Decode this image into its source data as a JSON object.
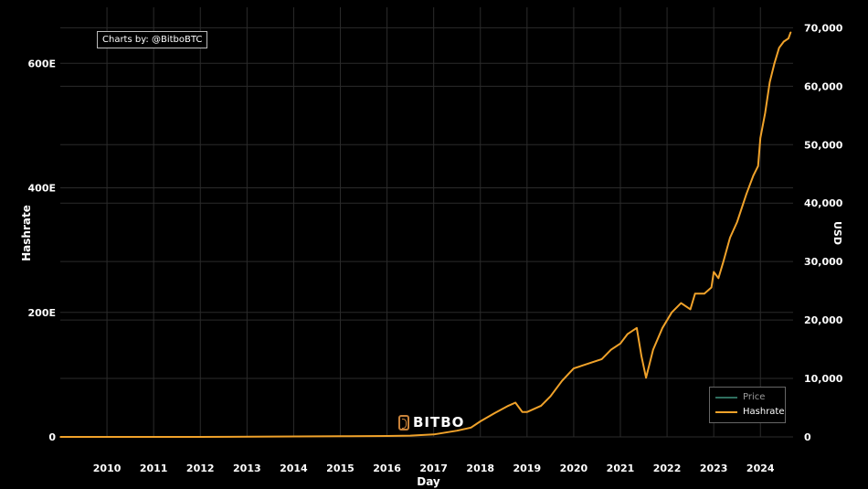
{
  "credit": "Charts by: @BitboBTC",
  "brand": "BITBO",
  "colors": {
    "hashrate": "#f0a22a",
    "price": "#2f6f5f",
    "grid": "#2b2b2b",
    "text": "#ffffff"
  },
  "chart_data": {
    "type": "line",
    "title": "",
    "xlabel": "Day",
    "ylabel_left": "Hashrate",
    "ylabel_right": "USD",
    "x_ticks": [
      "2010",
      "2011",
      "2012",
      "2013",
      "2014",
      "2015",
      "2016",
      "2017",
      "2018",
      "2019",
      "2020",
      "2021",
      "2022",
      "2023",
      "2024"
    ],
    "xlim": [
      2009.0,
      2024.7
    ],
    "y_left_ticks": [
      "0",
      "200E",
      "400E",
      "600E"
    ],
    "y_left_tick_values": [
      0,
      200,
      400,
      600
    ],
    "ylim_left": [
      0,
      690
    ],
    "y_right_ticks": [
      "0",
      "10,000",
      "20,000",
      "30,000",
      "40,000",
      "50,000",
      "60,000",
      "70,000"
    ],
    "y_right_tick_values": [
      0,
      10000,
      20000,
      30000,
      40000,
      50000,
      60000,
      70000
    ],
    "ylim_right": [
      0,
      73500
    ],
    "grid": true,
    "legend_position": "bottom-right",
    "series": [
      {
        "name": "Price",
        "axis": "right",
        "x": [],
        "values": []
      },
      {
        "name": "Hashrate",
        "axis": "left",
        "x": [
          2009.0,
          2012.0,
          2015.0,
          2016.0,
          2016.5,
          2017.0,
          2017.5,
          2017.8,
          2018.0,
          2018.3,
          2018.6,
          2018.75,
          2018.9,
          2019.0,
          2019.3,
          2019.5,
          2019.75,
          2020.0,
          2020.2,
          2020.4,
          2020.6,
          2020.8,
          2021.0,
          2021.15,
          2021.35,
          2021.45,
          2021.55,
          2021.7,
          2021.9,
          2022.1,
          2022.3,
          2022.5,
          2022.6,
          2022.8,
          2022.95,
          2023.0,
          2023.1,
          2023.2,
          2023.35,
          2023.5,
          2023.7,
          2023.85,
          2023.95,
          2024.0,
          2024.1,
          2024.2,
          2024.3,
          2024.4,
          2024.5,
          2024.6,
          2024.65
        ],
        "values": [
          0,
          0,
          1,
          1.5,
          2,
          4,
          10,
          15,
          25,
          38,
          50,
          55,
          40,
          40,
          50,
          65,
          90,
          110,
          115,
          120,
          125,
          140,
          150,
          165,
          175,
          130,
          95,
          140,
          175,
          200,
          215,
          205,
          230,
          230,
          240,
          265,
          255,
          280,
          320,
          345,
          390,
          420,
          435,
          480,
          520,
          570,
          600,
          625,
          635,
          640,
          650
        ]
      }
    ]
  }
}
